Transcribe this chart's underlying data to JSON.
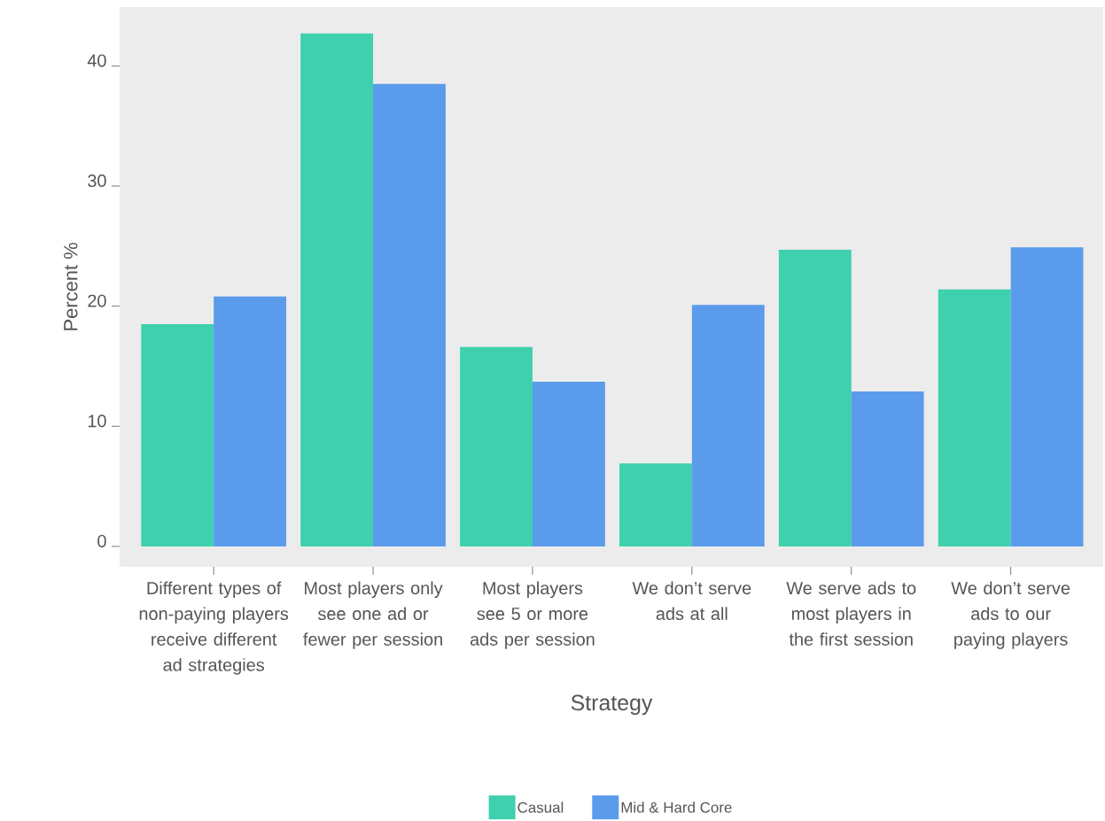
{
  "chart_data": {
    "type": "bar",
    "xlabel": "Strategy",
    "ylabel": "Percent %",
    "categories": [
      "Different types of non-paying players receive different ad strategies",
      "Most players only see one ad or fewer per session",
      "Most players see 5 or more ads per session",
      "We don’t serve ads at all",
      "We serve ads to most players in the first session",
      "We don’t serve ads to our paying players"
    ],
    "series": [
      {
        "name": "Casual",
        "color": "#3fd0ae",
        "values": [
          18.5,
          42.7,
          16.6,
          6.9,
          24.7,
          21.4
        ]
      },
      {
        "name": "Mid & Hard Core",
        "color": "#5b9bec",
        "values": [
          20.8,
          38.5,
          13.7,
          20.1,
          12.9,
          24.9
        ]
      }
    ],
    "ylim": [
      -1.7,
      44.9
    ],
    "yticks": [
      0,
      10,
      20,
      30,
      40
    ],
    "grid": false,
    "legend": "bottom"
  }
}
